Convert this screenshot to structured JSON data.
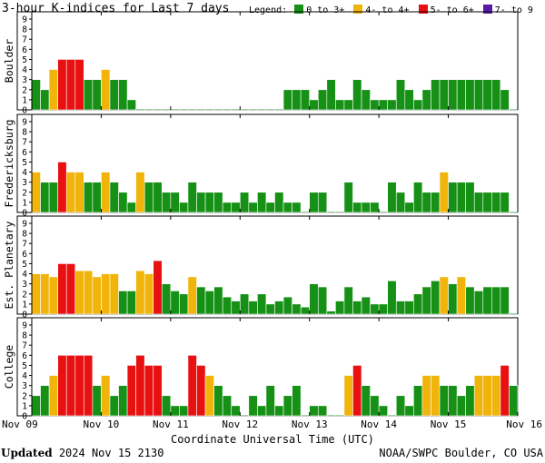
{
  "title": "3-hour K-indices for Last 7 days",
  "legend": {
    "label": "Legend:",
    "items": [
      {
        "label": "0 to 3+",
        "color": "#169116"
      },
      {
        "label": "4- to 4+",
        "color": "#f0b40a"
      },
      {
        "label": "5- to 6+",
        "color": "#e81010"
      },
      {
        "label": "7- to 9",
        "color": "#5a1aa6"
      }
    ]
  },
  "footer": {
    "updated_label": "Updated",
    "updated_value": "2024 Nov 15 2130",
    "credit": "NOAA/SWPC Boulder, CO USA"
  },
  "chart_data": [
    {
      "type": "bar",
      "panel": "Boulder",
      "ylabel": "Boulder",
      "ylim": [
        0,
        9
      ],
      "yticks": [
        0,
        1,
        2,
        3,
        4,
        5,
        6,
        7,
        8,
        9
      ],
      "grid": false,
      "x_ticks": [
        "Nov 09",
        "Nov 10",
        "Nov 11",
        "Nov 12",
        "Nov 13",
        "Nov 14",
        "Nov 15",
        "Nov 16"
      ],
      "xlabel": "",
      "values": [
        3,
        2,
        4,
        5,
        5,
        5,
        3,
        3,
        4,
        3,
        3,
        1,
        0,
        0,
        0,
        0,
        0,
        0,
        0,
        0,
        0,
        0,
        0,
        0,
        0,
        0,
        0,
        0,
        0,
        2,
        2,
        2,
        1,
        2,
        3,
        1,
        1,
        3,
        2,
        1,
        1,
        1,
        3,
        2,
        1,
        2,
        3,
        3,
        3,
        3,
        3,
        3,
        3,
        3,
        2,
        0
      ]
    },
    {
      "type": "bar",
      "panel": "Fredericksburg",
      "ylabel": "Fredericksburg",
      "ylim": [
        0,
        9
      ],
      "yticks": [
        0,
        1,
        2,
        3,
        4,
        5,
        6,
        7,
        8,
        9
      ],
      "grid": false,
      "x_ticks": [
        "Nov 09",
        "Nov 10",
        "Nov 11",
        "Nov 12",
        "Nov 13",
        "Nov 14",
        "Nov 15",
        "Nov 16"
      ],
      "xlabel": "",
      "values": [
        4,
        3,
        3,
        5,
        4,
        4,
        3,
        3,
        4,
        3,
        2,
        1,
        4,
        3,
        3,
        2,
        2,
        1,
        3,
        2,
        2,
        2,
        1,
        1,
        2,
        1,
        2,
        1,
        2,
        1,
        1,
        0,
        2,
        2,
        0,
        0,
        3,
        1,
        1,
        1,
        0,
        3,
        2,
        1,
        3,
        2,
        2,
        4,
        3,
        3,
        3,
        2,
        2,
        2,
        2,
        0
      ]
    },
    {
      "type": "bar",
      "panel": "Est. Planetary",
      "ylabel": "Est. Planetary",
      "ylim": [
        0,
        9
      ],
      "yticks": [
        0,
        1,
        2,
        3,
        4,
        5,
        6,
        7,
        8,
        9
      ],
      "grid": false,
      "x_ticks": [
        "Nov 09",
        "Nov 10",
        "Nov 11",
        "Nov 12",
        "Nov 13",
        "Nov 14",
        "Nov 15",
        "Nov 16"
      ],
      "xlabel": "",
      "values": [
        4.0,
        4.0,
        3.7,
        5.0,
        5.0,
        4.3,
        4.3,
        3.7,
        4.0,
        4.0,
        2.3,
        2.3,
        4.3,
        4.0,
        5.3,
        3.0,
        2.3,
        2.0,
        3.7,
        2.7,
        2.3,
        2.7,
        1.7,
        1.3,
        2.0,
        1.3,
        2.0,
        1.0,
        1.3,
        1.7,
        1.0,
        0.7,
        3.0,
        2.7,
        0.3,
        1.3,
        2.7,
        1.3,
        1.7,
        1.0,
        1.0,
        3.3,
        1.3,
        1.3,
        2.0,
        2.7,
        3.3,
        3.7,
        3.0,
        3.7,
        2.7,
        2.3,
        2.7,
        2.7,
        2.7,
        0
      ]
    },
    {
      "type": "bar",
      "panel": "College",
      "ylabel": "College",
      "ylim": [
        0,
        9
      ],
      "yticks": [
        0,
        1,
        2,
        3,
        4,
        5,
        6,
        7,
        8,
        9
      ],
      "grid": false,
      "x_ticks": [
        "Nov 09",
        "Nov 10",
        "Nov 11",
        "Nov 12",
        "Nov 13",
        "Nov 14",
        "Nov 15",
        "Nov 16"
      ],
      "xlabel": "Coordinate Universal Time (UTC)",
      "values": [
        2,
        3,
        4,
        6,
        6,
        6,
        6,
        3,
        4,
        2,
        3,
        5,
        6,
        5,
        5,
        2,
        1,
        1,
        6,
        5,
        4,
        3,
        2,
        1,
        0,
        2,
        1,
        3,
        1,
        2,
        3,
        0,
        1,
        1,
        0,
        0,
        4,
        5,
        3,
        2,
        1,
        0,
        2,
        1,
        3,
        4,
        4,
        3,
        3,
        2,
        3,
        4,
        4,
        4,
        5,
        3
      ]
    }
  ]
}
